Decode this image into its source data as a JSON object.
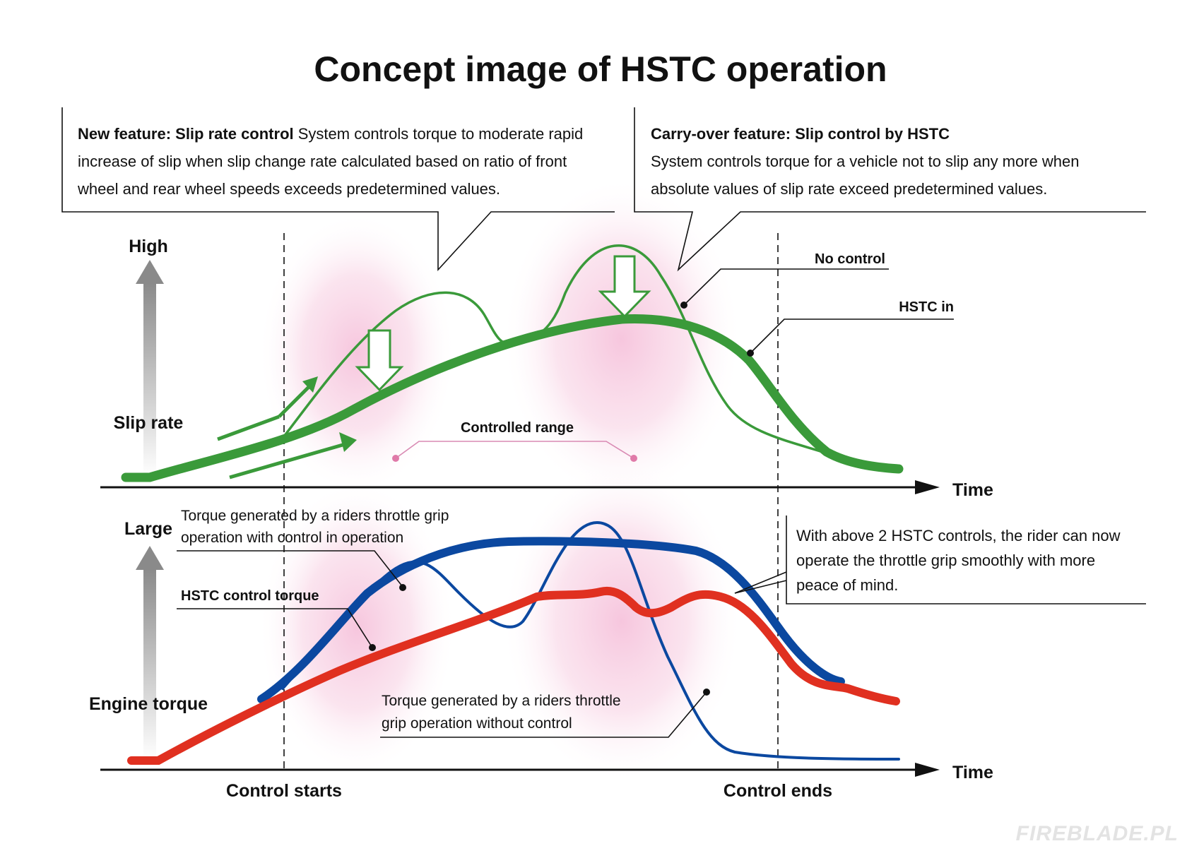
{
  "title": "Concept image of HSTC operation",
  "colors": {
    "slip": "#3a9a3a",
    "hstc_torque": "#e03020",
    "throttle_torque": "#0b48a0",
    "pink": "#f6c3dc"
  },
  "callouts": {
    "new_feature": {
      "heading": "New feature: Slip rate control",
      "line1_rest": " System controls torque to moderate rapid",
      "line2": "increase of slip when slip change rate calculated based on ratio of front",
      "line3": "wheel and rear wheel speeds exceeds predetermined values."
    },
    "carry_over": {
      "heading": "Carry-over feature: Slip control by HSTC",
      "line2": "System controls torque for a vehicle not to slip any more when",
      "line3": "absolute values of slip rate exceed predetermined values."
    },
    "rider": {
      "line1": "With above 2 HSTC controls, the rider can now",
      "line2": "operate the throttle grip smoothly with more",
      "line3": "peace of mind."
    }
  },
  "top_chart": {
    "y_high": "High",
    "y_label": "Slip rate",
    "x_label": "Time",
    "no_control": "No control",
    "hstc_in": "HSTC in",
    "controlled_range": "Controlled range"
  },
  "bottom_chart": {
    "y_large": "Large",
    "y_label": "Engine torque",
    "x_label": "Time",
    "with_control_line1": "Torque generated by a riders throttle grip",
    "with_control_line2": "operation with control in operation",
    "hstc_torque": "HSTC control torque",
    "without_control_line1": "Torque generated by a riders throttle",
    "without_control_line2": "grip operation without control"
  },
  "markers": {
    "control_starts": "Control starts",
    "control_ends": "Control ends"
  },
  "watermark": "FIREBLADE.PL"
}
